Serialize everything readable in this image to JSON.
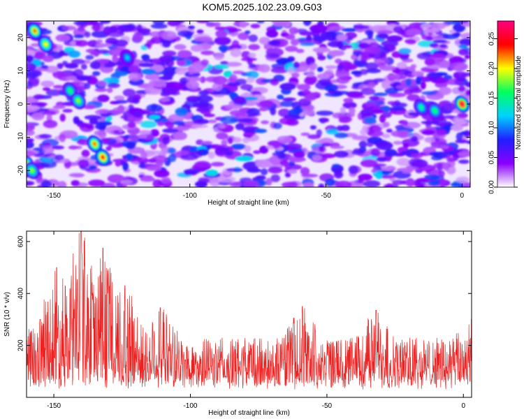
{
  "figure": {
    "title": "KOM5.2025.102.23.09.G03"
  },
  "chart_data": [
    {
      "type": "heatmap",
      "xlabel": "Height of straight line (km)",
      "ylabel": "Frequency (Hz)",
      "xlim": [
        -160,
        3
      ],
      "ylim": [
        -25,
        25
      ],
      "xticks": [
        -150,
        -100,
        -50,
        0
      ],
      "yticks": [
        -20,
        -10,
        0,
        10,
        20
      ],
      "xtick_labels": [
        "-150",
        "-100",
        "-50",
        "0"
      ],
      "ytick_labels": [
        "-20",
        "-10",
        "0",
        "10",
        "20"
      ],
      "colorbar": {
        "label": "Normalized spectral amplitude",
        "range": [
          0,
          0.28
        ],
        "ticks": [
          0,
          0.05,
          0.1,
          0.15,
          0.2,
          0.25
        ],
        "tick_labels": [
          "0.00",
          "0.05",
          "0.10",
          "0.15",
          "0.20",
          "0.25"
        ],
        "colors": [
          "#ffffff",
          "#8a00ff",
          "#1f1fff",
          "#00d2ff",
          "#00ff60",
          "#ffff00",
          "#ff0000",
          "#ff0080"
        ]
      },
      "hotspots": [
        {
          "x": -157,
          "y": 22,
          "value": 0.22
        },
        {
          "x": -153,
          "y": 18,
          "value": 0.2
        },
        {
          "x": -144,
          "y": 4,
          "value": 0.16
        },
        {
          "x": -141,
          "y": 1,
          "value": 0.18
        },
        {
          "x": -135,
          "y": -12,
          "value": 0.22
        },
        {
          "x": -132,
          "y": -16,
          "value": 0.24
        },
        {
          "x": -160,
          "y": -18,
          "value": 0.2
        },
        {
          "x": -158,
          "y": -20,
          "value": 0.18
        },
        {
          "x": -123,
          "y": 14,
          "value": 0.12
        },
        {
          "x": -15,
          "y": -1,
          "value": 0.15
        },
        {
          "x": -10,
          "y": -2,
          "value": 0.16
        },
        {
          "x": 0,
          "y": 0,
          "value": 0.26
        }
      ],
      "grid": false
    },
    {
      "type": "line",
      "xlabel": "Height of straight line (km)",
      "ylabel": "SNR (10 * v/v)",
      "xlim": [
        -160,
        3
      ],
      "ylim": [
        0,
        640
      ],
      "xticks": [
        -150,
        -100,
        -50,
        0
      ],
      "yticks": [
        200,
        400,
        600
      ],
      "xtick_labels": [
        "-150",
        "-100",
        "-50",
        "0"
      ],
      "ytick_labels": [
        "200",
        "400",
        "600"
      ],
      "series_color": "#ee2020",
      "peaks": [
        {
          "x": -155,
          "y": 300
        },
        {
          "x": -149,
          "y": 500
        },
        {
          "x": -140,
          "y": 640
        },
        {
          "x": -132,
          "y": 575
        },
        {
          "x": -124,
          "y": 430
        },
        {
          "x": -111,
          "y": 345
        },
        {
          "x": -59,
          "y": 350
        },
        {
          "x": -32,
          "y": 335
        },
        {
          "x": 3,
          "y": 300
        }
      ],
      "baseline": 130,
      "grid": false
    }
  ]
}
